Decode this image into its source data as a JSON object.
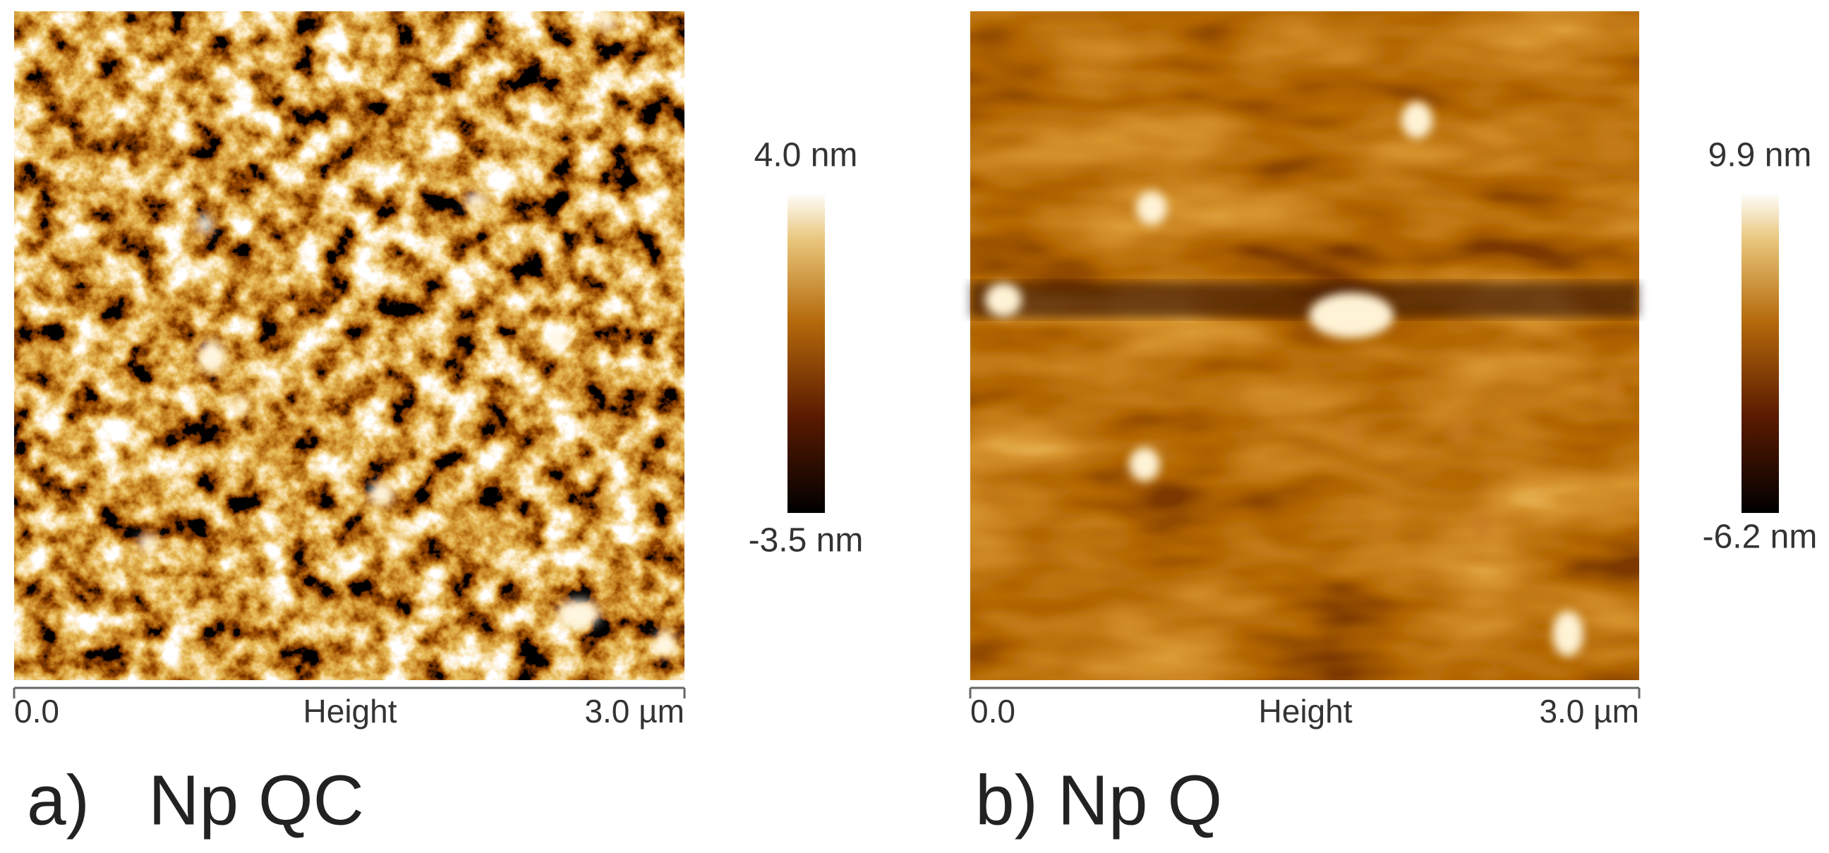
{
  "panels": [
    {
      "label": "a)   Np QC",
      "scale_max": "4.0 nm",
      "scale_min": "-3.5 nm",
      "axis_start": "0.0",
      "axis_title": "Height",
      "axis_end": "3.0 µm"
    },
    {
      "label": "b) Np Q",
      "scale_max": "9.9 nm",
      "scale_min": "-6.2 nm",
      "axis_start": "0.0",
      "axis_title": "Height",
      "axis_end": "3.0 µm"
    }
  ]
}
